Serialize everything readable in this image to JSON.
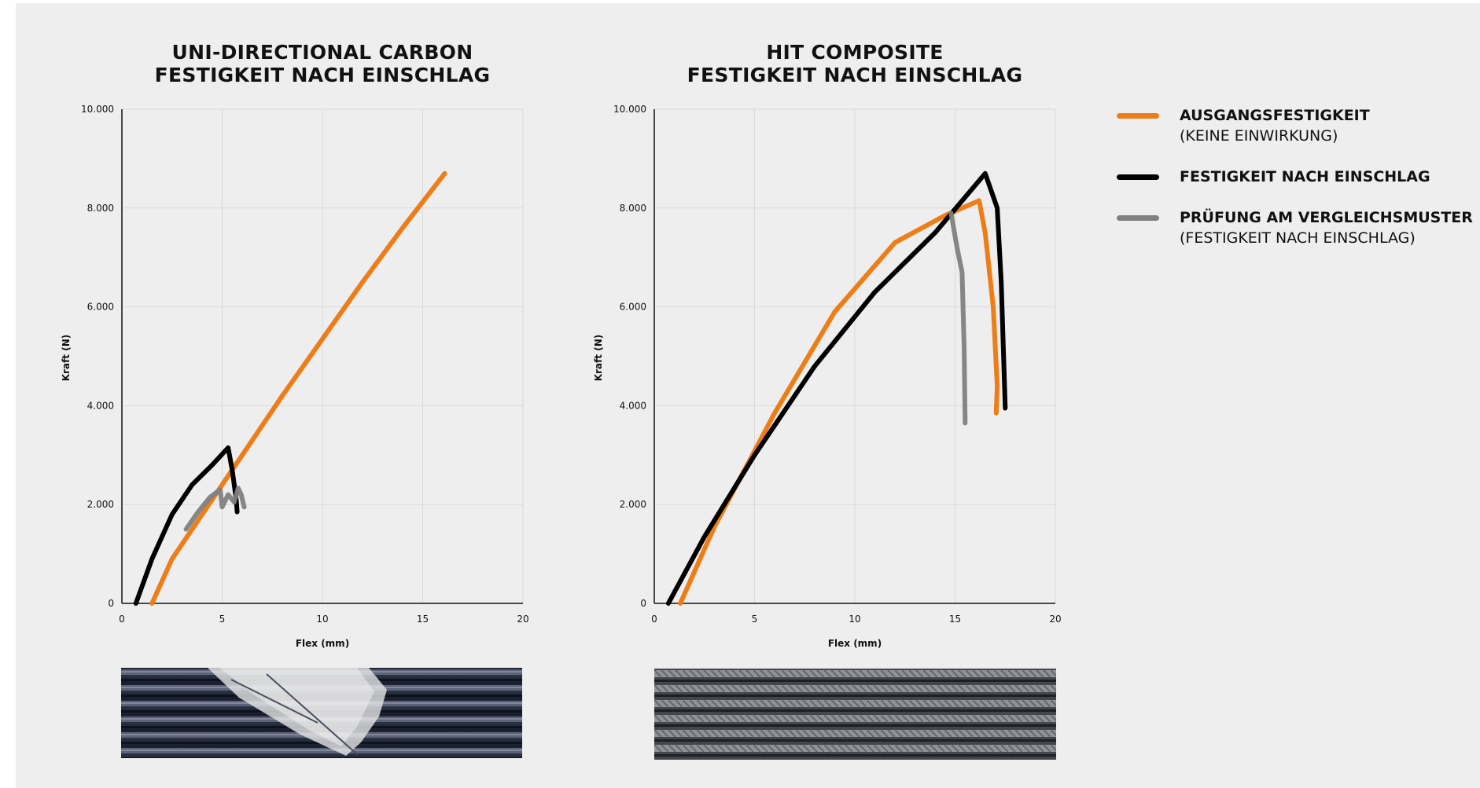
{
  "colors": {
    "ausgangsfestigkeit": "#ef7d17",
    "festigkeit_nach_einschlag": "#000000",
    "vergleichsmuster": "#808080",
    "grid": "#d9d9d9",
    "axis": "#111111"
  },
  "legend": {
    "placement": "right",
    "items": [
      {
        "label": "AUSGANGSFESTIGKEIT",
        "sublabel": "(KEINE EINWIRKUNG)",
        "color": "#ef7d17"
      },
      {
        "label": "FESTIGKEIT NACH EINSCHLAG",
        "sublabel": "",
        "color": "#000000"
      },
      {
        "label": "PRÜFUNG AM VERGLEICHSMUSTER",
        "sublabel": "(FESTIGKEIT NACH EINSCHLAG)",
        "color": "#808080"
      }
    ]
  },
  "chart_data": [
    {
      "type": "line",
      "title": [
        "UNI-DIRECTIONAL CARBON",
        "FESTIGKEIT NACH EINSCHLAG"
      ],
      "xlabel": "Flex (mm)",
      "ylabel": "Kraft (N)",
      "xlim": [
        0,
        20
      ],
      "ylim": [
        0,
        10000
      ],
      "xticks": [
        0,
        5,
        10,
        15,
        20
      ],
      "xtick_labels": [
        "0",
        "5",
        "10",
        "15",
        "20"
      ],
      "yticks": [
        0,
        2000,
        4000,
        6000,
        8000,
        10000
      ],
      "ytick_labels": [
        "0",
        "2.000",
        "4.000",
        "6.000",
        "8.000",
        "10.000"
      ],
      "grid": true,
      "series": [
        {
          "color": "#ef7d17",
          "x": [
            1.5,
            2.5,
            4,
            6,
            8,
            10,
            12,
            14,
            16.1
          ],
          "y": [
            0,
            900,
            1800,
            3000,
            4200,
            5350,
            6500,
            7600,
            8700
          ]
        },
        {
          "color": "#000000",
          "x": [
            0.7,
            1.5,
            2.5,
            3.5,
            4.5,
            5.3,
            5.5,
            5.7,
            5.75
          ],
          "y": [
            0,
            900,
            1800,
            2400,
            2800,
            3150,
            2700,
            2100,
            1850
          ]
        },
        {
          "color": "#808080",
          "x": [
            3.2,
            3.8,
            4.4,
            4.9,
            5.0,
            5.3,
            5.6,
            5.8,
            5.95,
            6.1
          ],
          "y": [
            1500,
            1850,
            2150,
            2300,
            1950,
            2200,
            2050,
            2330,
            2200,
            1950
          ]
        }
      ]
    },
    {
      "type": "line",
      "title": [
        "HIT COMPOSITE",
        "FESTIGKEIT NACH EINSCHLAG"
      ],
      "xlabel": "Flex (mm)",
      "ylabel": "Kraft (N)",
      "xlim": [
        0,
        20
      ],
      "ylim": [
        0,
        10000
      ],
      "xticks": [
        0,
        5,
        10,
        15,
        20
      ],
      "xtick_labels": [
        "0",
        "5",
        "10",
        "15",
        "20"
      ],
      "yticks": [
        0,
        2000,
        4000,
        6000,
        8000,
        10000
      ],
      "ytick_labels": [
        "0",
        "2.000",
        "4.000",
        "6.000",
        "8.000",
        "10.000"
      ],
      "grid": true,
      "series": [
        {
          "color": "#ef7d17",
          "x": [
            1.3,
            3,
            6,
            9,
            12,
            14.5,
            16.2,
            16.5,
            16.9,
            17.1,
            17.05
          ],
          "y": [
            0,
            1550,
            3850,
            5900,
            7300,
            7850,
            8150,
            7500,
            6000,
            4400,
            3850
          ]
        },
        {
          "color": "#000000",
          "x": [
            0.7,
            2.5,
            5,
            8,
            11,
            14,
            16.5,
            17.1,
            17.3,
            17.5
          ],
          "y": [
            0,
            1350,
            3000,
            4800,
            6300,
            7500,
            8700,
            8000,
            6500,
            3950
          ]
        },
        {
          "color": "#808080",
          "x": [
            14.8,
            15.1,
            15.35,
            15.45,
            15.5
          ],
          "y": [
            7900,
            7200,
            6700,
            5200,
            3650
          ]
        }
      ]
    }
  ]
}
